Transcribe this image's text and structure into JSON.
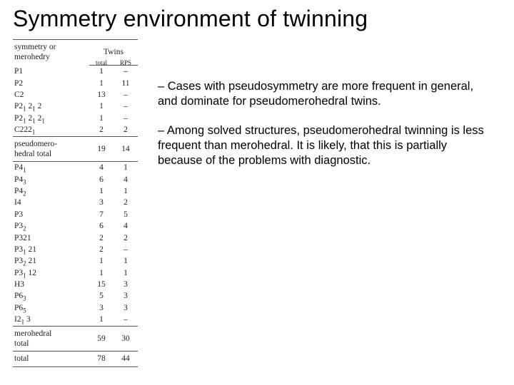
{
  "title": "Symmetry environment of twinning",
  "colors": {
    "background": "#ffffff",
    "text": "#000000",
    "rule": "#555555"
  },
  "table": {
    "header": {
      "symmetry": "symmetry or\nmerohedry",
      "twins": "Twins",
      "total": "total",
      "rps": "RPS"
    },
    "sections": [
      {
        "rows": [
          {
            "sym": "P1",
            "total": "1",
            "rps": "–"
          },
          {
            "sym": "P2",
            "total": "1",
            "rps": "11"
          },
          {
            "sym": "C2",
            "total": "13",
            "rps": "–"
          },
          {
            "sym": "P2_1 2_1 2",
            "total": "1",
            "rps": "–"
          },
          {
            "sym": "P2_1 2_1 2_1",
            "total": "1",
            "rps": "–"
          },
          {
            "sym": "C222_1",
            "total": "2",
            "rps": "2"
          }
        ],
        "subtotal": {
          "label": "pseudomero-\nhedral total",
          "total": "19",
          "rps": "14"
        }
      },
      {
        "rows": [
          {
            "sym": "P4_1",
            "total": "4",
            "rps": "1"
          },
          {
            "sym": "P4_3",
            "total": "6",
            "rps": "4"
          },
          {
            "sym": "P4_2",
            "total": "1",
            "rps": "1"
          },
          {
            "sym": "I4",
            "total": "3",
            "rps": "2"
          },
          {
            "sym": "P3",
            "total": "7",
            "rps": "5"
          },
          {
            "sym": "P3_2",
            "total": "6",
            "rps": "4"
          },
          {
            "sym": "P321",
            "total": "2",
            "rps": "2"
          },
          {
            "sym": "P3_1 21",
            "total": "2",
            "rps": "–"
          },
          {
            "sym": "P3_2 21",
            "total": "1",
            "rps": "1"
          },
          {
            "sym": "P3_1 12",
            "total": "1",
            "rps": "1"
          },
          {
            "sym": "H3",
            "total": "15",
            "rps": "3"
          },
          {
            "sym": "P6_3",
            "total": "5",
            "rps": "3"
          },
          {
            "sym": "P6_5",
            "total": "3",
            "rps": "3"
          },
          {
            "sym": "I2_1 3",
            "total": "1",
            "rps": "–"
          }
        ],
        "subtotal": {
          "label": "merohedral\ntotal",
          "total": "59",
          "rps": "30"
        }
      }
    ],
    "grand_total": {
      "label": "total",
      "total": "78",
      "rps": "44"
    }
  },
  "paragraphs": [
    "– Cases with pseudosymmetry are more frequent in general, and dominate for pseudomerohedral twins.",
    "– Among solved structures, pseudomerohedral twinning is less frequent than merohedral. It is likely, that this is partially because of the problems with diagnostic."
  ]
}
